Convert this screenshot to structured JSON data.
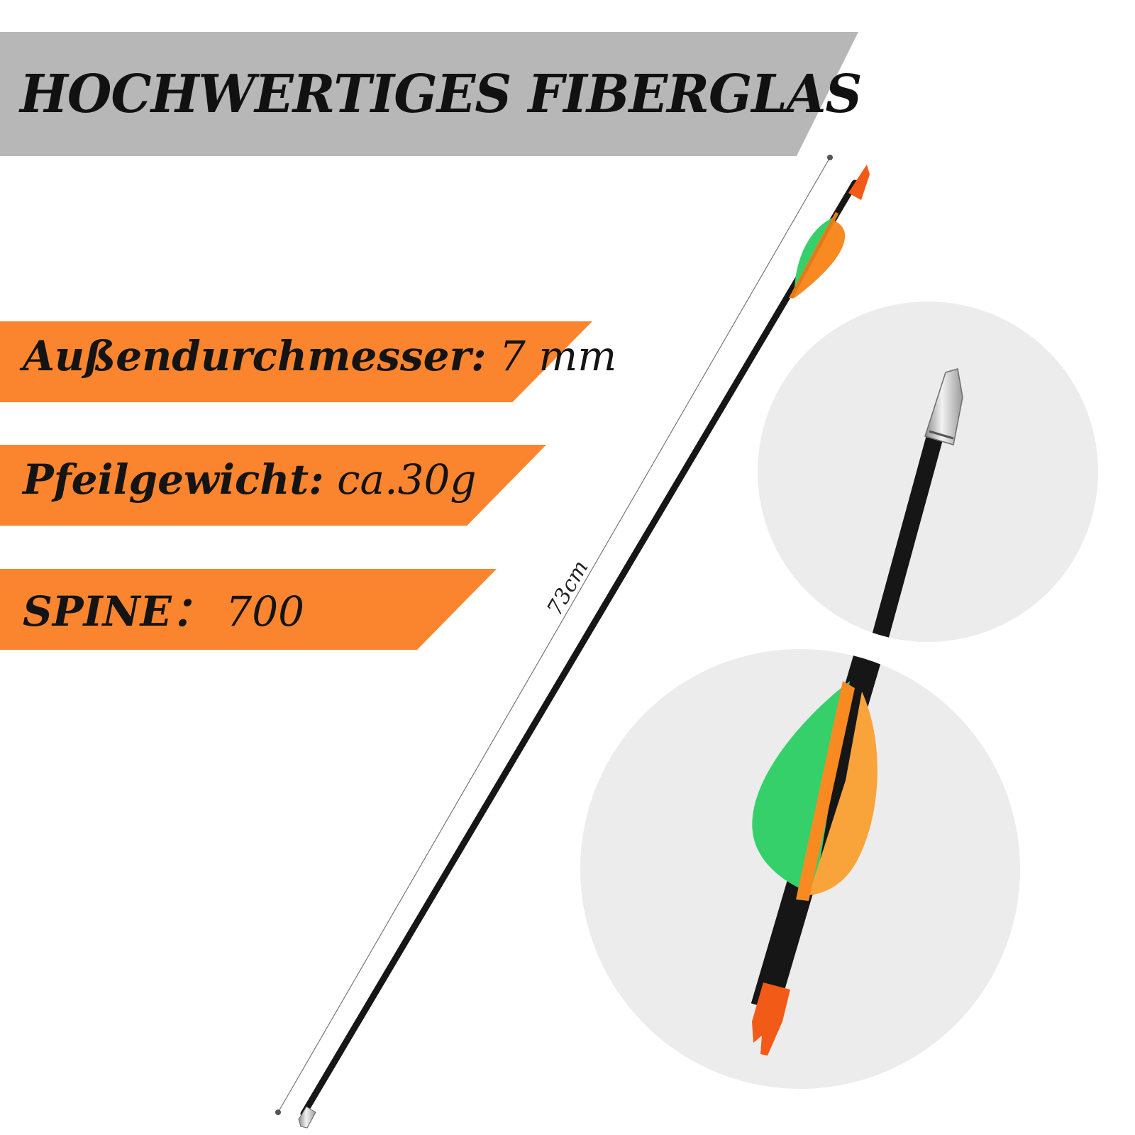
{
  "title": "HOCHWERTIGES FIBERGLAS",
  "specs": [
    {
      "label": "Außendurchmesser:",
      "value": " 7 mm"
    },
    {
      "label": "Pfeilgewicht:",
      "value": " ca.30g"
    },
    {
      "label": "SPINE：",
      "value": " 700"
    }
  ],
  "measurement": {
    "length_label": "73cm"
  },
  "colors": {
    "title_banner": "#b7b7b7",
    "spec_banner": "#fb852f",
    "shaft": "#161616",
    "vane_green": "#36d06a",
    "vane_orange": "#f98a22",
    "nock": "#f25a18",
    "tip_metal": "#c9c9c9",
    "circle_bg": "#ececec"
  }
}
